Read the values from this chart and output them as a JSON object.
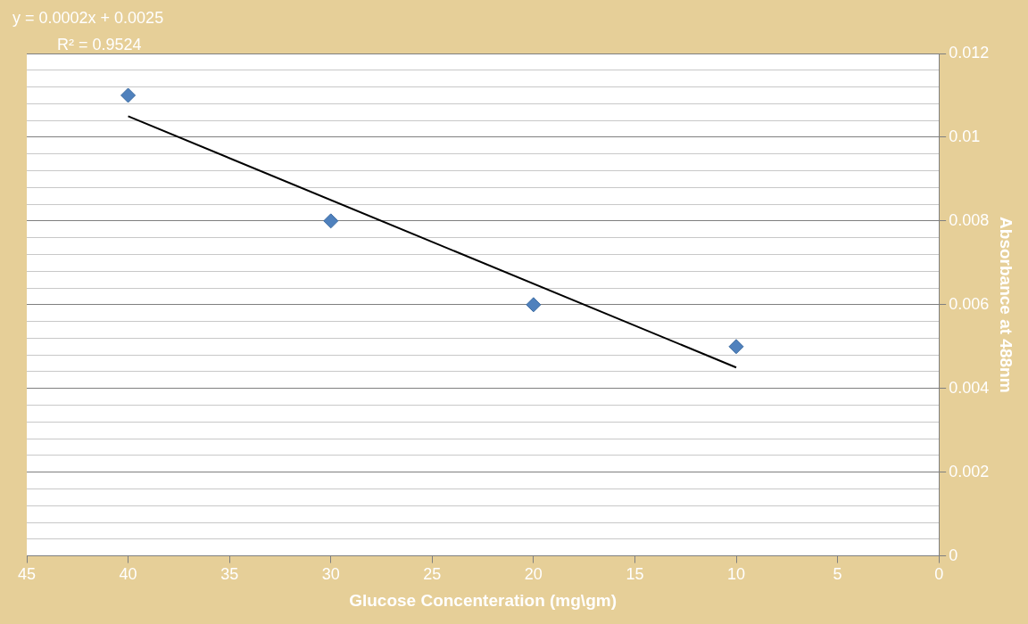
{
  "chart_data": {
    "type": "scatter",
    "xlabel": "Glucose Concenteration (mg\\gm)",
    "ylabel": "Absorbance at 488nm",
    "annotations": [
      "y = 0.0002x + 0.0025",
      "R² = 0.9524"
    ],
    "xlim": [
      45,
      0
    ],
    "xticks": [
      45,
      40,
      35,
      30,
      25,
      20,
      15,
      10,
      5,
      0
    ],
    "ylim": [
      0,
      0.012
    ],
    "yticks": [
      0,
      {
        "value": 0.0004,
        "label": null
      },
      {
        "value": 0.0008,
        "label": null
      },
      {
        "value": 0.0012,
        "label": null
      },
      {
        "value": 0.0016,
        "label": null
      },
      0.002,
      {
        "value": 0.0024,
        "label": null
      },
      {
        "value": 0.0028,
        "label": null
      },
      {
        "value": 0.0032,
        "label": null
      },
      {
        "value": 0.0036,
        "label": null
      },
      0.004,
      {
        "value": 0.0044,
        "label": null
      },
      {
        "value": 0.0048,
        "label": null
      },
      {
        "value": 0.0052,
        "label": null
      },
      {
        "value": 0.0056,
        "label": null
      },
      0.006,
      {
        "value": 0.0064,
        "label": null
      },
      {
        "value": 0.0068,
        "label": null
      },
      {
        "value": 0.0072,
        "label": null
      },
      {
        "value": 0.0076,
        "label": null
      },
      0.008,
      {
        "value": 0.0084,
        "label": null
      },
      {
        "value": 0.0088,
        "label": null
      },
      {
        "value": 0.0092,
        "label": null
      },
      {
        "value": 0.0096,
        "label": null
      },
      0.01,
      {
        "value": 0.0104,
        "label": null
      },
      {
        "value": 0.0108,
        "label": null
      },
      {
        "value": 0.0112,
        "label": null
      },
      {
        "value": 0.0116,
        "label": null
      },
      0.012
    ],
    "grid": "y",
    "legend": false,
    "marker": "diamond",
    "series": [
      {
        "color": "#4f81bd",
        "x": [
          40,
          30,
          20,
          10
        ],
        "values": [
          0.011,
          0.008,
          0.006,
          0.005
        ]
      },
      {
        "type": "line",
        "color": "#000000",
        "marker": "none",
        "x": [
          40,
          10
        ],
        "values": [
          0.0105,
          0.0045
        ]
      }
    ]
  }
}
